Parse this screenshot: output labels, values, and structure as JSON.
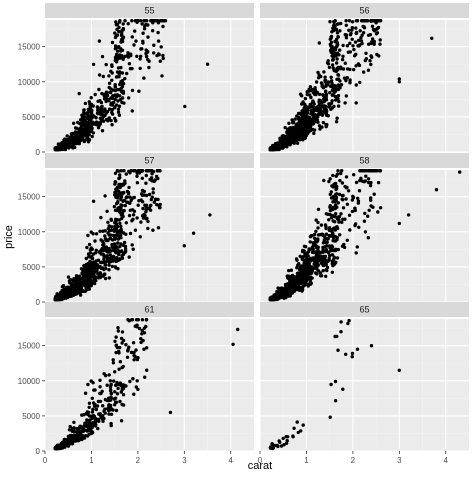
{
  "chart_data": {
    "type": "scatter",
    "facet_by": "table",
    "facets": [
      {
        "label": "55",
        "n": 700,
        "max_carat": 2.6,
        "outliers": [
          [
            3.01,
            6500
          ],
          [
            3.5,
            12500
          ]
        ]
      },
      {
        "label": "56",
        "n": 1100,
        "max_carat": 2.6,
        "outliers": [
          [
            3.0,
            10000
          ],
          [
            3.0,
            10400
          ],
          [
            3.7,
            16200
          ]
        ]
      },
      {
        "label": "57",
        "n": 1100,
        "max_carat": 2.5,
        "outliers": [
          [
            3.0,
            8000
          ],
          [
            3.2,
            9800
          ],
          [
            3.55,
            12400
          ]
        ]
      },
      {
        "label": "58",
        "n": 1000,
        "max_carat": 2.6,
        "outliers": [
          [
            3.0,
            11200
          ],
          [
            3.2,
            12400
          ],
          [
            3.8,
            16000
          ],
          [
            4.3,
            18500
          ]
        ]
      },
      {
        "label": "61",
        "n": 450,
        "max_carat": 2.2,
        "outliers": [
          [
            2.7,
            5500
          ],
          [
            4.05,
            15200
          ],
          [
            4.15,
            17300
          ]
        ]
      },
      {
        "label": "65",
        "n": 45,
        "max_carat": 2.0,
        "outliers": [
          [
            2.1,
            14500
          ],
          [
            2.4,
            15000
          ],
          [
            3.0,
            11500
          ]
        ]
      }
    ],
    "xlabel": "carat",
    "ylabel": "price",
    "xlim": [
      0,
      4.5
    ],
    "ylim": [
      0,
      18800
    ],
    "x_ticks": [
      0,
      1,
      2,
      3,
      4
    ],
    "y_ticks": [
      0,
      5000,
      10000,
      15000
    ],
    "y_tick_labels": [
      "0",
      "5000",
      "10000",
      "15000"
    ],
    "grid": true,
    "layout": {
      "rows": 3,
      "cols": 2
    },
    "colors": {
      "panel_bg": "#ebebeb",
      "strip_bg": "#d9d9d9",
      "grid_major": "#ffffff",
      "grid_minor": "#f2f2f2",
      "point": "#000000"
    }
  }
}
